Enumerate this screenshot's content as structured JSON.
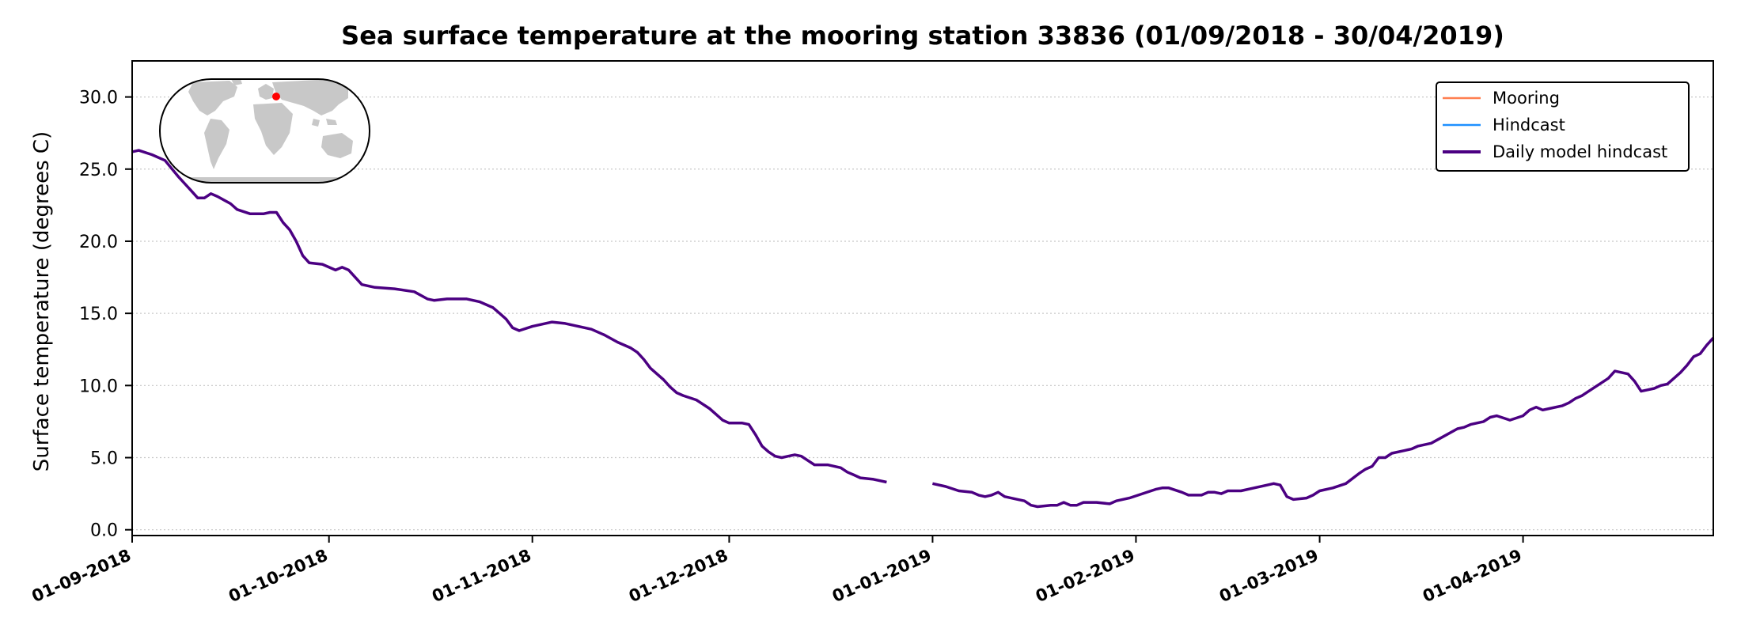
{
  "chart_data": {
    "type": "line",
    "title": "Sea surface temperature at the mooring station 33836 (01/09/2018 - 30/04/2019)",
    "ylabel": "Surface temperature (degrees C)",
    "xlabel": "",
    "xlim": [
      "2018-09-01",
      "2019-04-30"
    ],
    "ylim": [
      -0.4,
      32.5
    ],
    "grid": "horizontal dotted",
    "y_ticks": [
      0.0,
      5.0,
      10.0,
      15.0,
      20.0,
      25.0,
      30.0
    ],
    "y_tick_labels": [
      "0.0",
      "5.0",
      "10.0",
      "15.0",
      "20.0",
      "25.0",
      "30.0"
    ],
    "x_ticks": [
      "2018-09-01",
      "2018-10-01",
      "2018-11-01",
      "2018-12-01",
      "2019-01-01",
      "2019-02-01",
      "2019-03-01",
      "2019-04-01"
    ],
    "x_tick_labels": [
      "01-09-2018",
      "01-10-2018",
      "01-11-2018",
      "01-12-2018",
      "01-01-2019",
      "01-02-2019",
      "01-03-2019",
      "01-04-2019"
    ],
    "legend_position": "top-right",
    "inset": "world map showing station location in upper-left",
    "series": [
      {
        "name": "Mooring",
        "color": "#ff7f50",
        "points": []
      },
      {
        "name": "Hindcast",
        "color": "#1e90ff",
        "points": []
      },
      {
        "name": "Daily model hindcast",
        "color": "#4b0082",
        "segments": [
          [
            [
              "2018-09-01",
              26.2
            ],
            [
              "2018-09-02",
              26.3
            ],
            [
              "2018-09-04",
              26.0
            ],
            [
              "2018-09-06",
              25.6
            ],
            [
              "2018-09-08",
              24.5
            ],
            [
              "2018-09-09",
              24.0
            ],
            [
              "2018-09-10",
              23.5
            ],
            [
              "2018-09-11",
              23.0
            ],
            [
              "2018-09-12",
              23.0
            ],
            [
              "2018-09-13",
              23.3
            ],
            [
              "2018-09-14",
              23.1
            ],
            [
              "2018-09-16",
              22.6
            ],
            [
              "2018-09-17",
              22.2
            ],
            [
              "2018-09-19",
              21.9
            ],
            [
              "2018-09-21",
              21.9
            ],
            [
              "2018-09-22",
              22.0
            ],
            [
              "2018-09-23",
              22.0
            ],
            [
              "2018-09-24",
              21.3
            ],
            [
              "2018-09-25",
              20.8
            ],
            [
              "2018-09-26",
              20.0
            ],
            [
              "2018-09-27",
              19.0
            ],
            [
              "2018-09-28",
              18.5
            ],
            [
              "2018-09-30",
              18.4
            ],
            [
              "2018-10-02",
              18.0
            ],
            [
              "2018-10-03",
              18.2
            ],
            [
              "2018-10-04",
              18.0
            ],
            [
              "2018-10-06",
              17.0
            ],
            [
              "2018-10-08",
              16.8
            ],
            [
              "2018-10-11",
              16.7
            ],
            [
              "2018-10-14",
              16.5
            ],
            [
              "2018-10-16",
              16.0
            ],
            [
              "2018-10-17",
              15.9
            ],
            [
              "2018-10-19",
              16.0
            ],
            [
              "2018-10-22",
              16.0
            ],
            [
              "2018-10-24",
              15.8
            ],
            [
              "2018-10-26",
              15.4
            ],
            [
              "2018-10-27",
              15.0
            ],
            [
              "2018-10-28",
              14.6
            ],
            [
              "2018-10-29",
              14.0
            ],
            [
              "2018-10-30",
              13.8
            ],
            [
              "2018-11-01",
              14.1
            ],
            [
              "2018-11-04",
              14.4
            ],
            [
              "2018-11-06",
              14.3
            ],
            [
              "2018-11-08",
              14.1
            ],
            [
              "2018-11-10",
              13.9
            ],
            [
              "2018-11-12",
              13.5
            ],
            [
              "2018-11-14",
              13.0
            ],
            [
              "2018-11-16",
              12.6
            ],
            [
              "2018-11-17",
              12.3
            ],
            [
              "2018-11-18",
              11.8
            ],
            [
              "2018-11-19",
              11.2
            ],
            [
              "2018-11-21",
              10.4
            ],
            [
              "2018-11-22",
              9.9
            ],
            [
              "2018-11-23",
              9.5
            ],
            [
              "2018-11-24",
              9.3
            ],
            [
              "2018-11-26",
              9.0
            ],
            [
              "2018-11-28",
              8.4
            ],
            [
              "2018-11-29",
              8.0
            ],
            [
              "2018-11-30",
              7.6
            ],
            [
              "2018-12-01",
              7.4
            ],
            [
              "2018-12-03",
              7.4
            ],
            [
              "2018-12-04",
              7.3
            ],
            [
              "2018-12-05",
              6.6
            ],
            [
              "2018-12-06",
              5.8
            ],
            [
              "2018-12-07",
              5.4
            ],
            [
              "2018-12-08",
              5.1
            ],
            [
              "2018-12-09",
              5.0
            ],
            [
              "2018-12-10",
              5.1
            ],
            [
              "2018-12-11",
              5.2
            ],
            [
              "2018-12-12",
              5.1
            ],
            [
              "2018-12-13",
              4.8
            ],
            [
              "2018-12-14",
              4.5
            ],
            [
              "2018-12-16",
              4.5
            ],
            [
              "2018-12-18",
              4.3
            ],
            [
              "2018-12-19",
              4.0
            ],
            [
              "2018-12-20",
              3.8
            ],
            [
              "2018-12-21",
              3.6
            ],
            [
              "2018-12-23",
              3.5
            ],
            [
              "2018-12-25",
              3.3
            ]
          ],
          [
            [
              "2019-01-01",
              3.2
            ],
            [
              "2019-01-03",
              3.0
            ],
            [
              "2019-01-05",
              2.7
            ],
            [
              "2019-01-07",
              2.6
            ],
            [
              "2019-01-08",
              2.4
            ],
            [
              "2019-01-09",
              2.3
            ],
            [
              "2019-01-10",
              2.4
            ],
            [
              "2019-01-11",
              2.6
            ],
            [
              "2019-01-12",
              2.3
            ],
            [
              "2019-01-14",
              2.1
            ],
            [
              "2019-01-15",
              2.0
            ],
            [
              "2019-01-16",
              1.7
            ],
            [
              "2019-01-17",
              1.6
            ],
            [
              "2019-01-19",
              1.7
            ],
            [
              "2019-01-20",
              1.7
            ],
            [
              "2019-01-21",
              1.9
            ],
            [
              "2019-01-22",
              1.7
            ],
            [
              "2019-01-23",
              1.7
            ],
            [
              "2019-01-24",
              1.9
            ],
            [
              "2019-01-26",
              1.9
            ],
            [
              "2019-01-28",
              1.8
            ],
            [
              "2019-01-29",
              2.0
            ],
            [
              "2019-01-31",
              2.2
            ],
            [
              "2019-02-02",
              2.5
            ],
            [
              "2019-02-04",
              2.8
            ],
            [
              "2019-02-05",
              2.9
            ],
            [
              "2019-02-06",
              2.9
            ],
            [
              "2019-02-08",
              2.6
            ],
            [
              "2019-02-09",
              2.4
            ],
            [
              "2019-02-11",
              2.4
            ],
            [
              "2019-02-12",
              2.6
            ],
            [
              "2019-02-13",
              2.6
            ],
            [
              "2019-02-14",
              2.5
            ],
            [
              "2019-02-15",
              2.7
            ],
            [
              "2019-02-17",
              2.7
            ],
            [
              "2019-02-19",
              2.9
            ],
            [
              "2019-02-21",
              3.1
            ],
            [
              "2019-02-22",
              3.2
            ],
            [
              "2019-02-23",
              3.1
            ],
            [
              "2019-02-24",
              2.3
            ],
            [
              "2019-02-25",
              2.1
            ],
            [
              "2019-02-27",
              2.2
            ],
            [
              "2019-02-28",
              2.4
            ],
            [
              "2019-03-01",
              2.7
            ],
            [
              "2019-03-03",
              2.9
            ],
            [
              "2019-03-05",
              3.2
            ],
            [
              "2019-03-07",
              3.9
            ],
            [
              "2019-03-08",
              4.2
            ],
            [
              "2019-03-09",
              4.4
            ],
            [
              "2019-03-10",
              5.0
            ],
            [
              "2019-03-11",
              5.0
            ],
            [
              "2019-03-12",
              5.3
            ],
            [
              "2019-03-14",
              5.5
            ],
            [
              "2019-03-15",
              5.6
            ],
            [
              "2019-03-16",
              5.8
            ],
            [
              "2019-03-18",
              6.0
            ],
            [
              "2019-03-20",
              6.5
            ],
            [
              "2019-03-22",
              7.0
            ],
            [
              "2019-03-23",
              7.1
            ],
            [
              "2019-03-24",
              7.3
            ],
            [
              "2019-03-26",
              7.5
            ],
            [
              "2019-03-27",
              7.8
            ],
            [
              "2019-03-28",
              7.9
            ],
            [
              "2019-03-30",
              7.6
            ],
            [
              "2019-04-01",
              7.9
            ],
            [
              "2019-04-02",
              8.3
            ],
            [
              "2019-04-03",
              8.5
            ],
            [
              "2019-04-04",
              8.3
            ],
            [
              "2019-04-05",
              8.4
            ],
            [
              "2019-04-07",
              8.6
            ],
            [
              "2019-04-08",
              8.8
            ],
            [
              "2019-04-09",
              9.1
            ],
            [
              "2019-04-10",
              9.3
            ],
            [
              "2019-04-11",
              9.6
            ],
            [
              "2019-04-13",
              10.2
            ],
            [
              "2019-04-14",
              10.5
            ],
            [
              "2019-04-15",
              11.0
            ],
            [
              "2019-04-17",
              10.8
            ],
            [
              "2019-04-18",
              10.3
            ],
            [
              "2019-04-19",
              9.6
            ],
            [
              "2019-04-20",
              9.7
            ],
            [
              "2019-04-21",
              9.8
            ],
            [
              "2019-04-22",
              10.0
            ],
            [
              "2019-04-23",
              10.1
            ],
            [
              "2019-04-24",
              10.5
            ],
            [
              "2019-04-25",
              10.9
            ],
            [
              "2019-04-26",
              11.4
            ],
            [
              "2019-04-27",
              12.0
            ],
            [
              "2019-04-28",
              12.2
            ],
            [
              "2019-04-29",
              12.8
            ],
            [
              "2019-04-30",
              13.3
            ]
          ]
        ]
      }
    ]
  },
  "inset_map": {
    "land_color": "#c8c8c8",
    "marker_color": "#ff0000"
  }
}
